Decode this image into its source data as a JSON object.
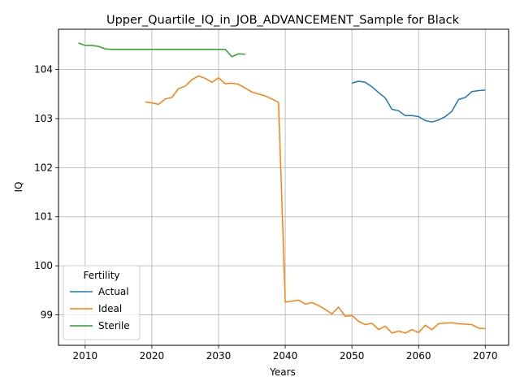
{
  "chart_data": {
    "type": "line",
    "title": "Upper_Quartile_IQ_in_JOB_ADVANCEMENT_Sample for Black",
    "xlabel": "Years",
    "ylabel": "IQ",
    "xlim": [
      2006,
      2073.5
    ],
    "ylim": [
      98.38,
      104.82
    ],
    "xticks": [
      2010,
      2020,
      2030,
      2040,
      2050,
      2060,
      2070
    ],
    "yticks": [
      99,
      100,
      101,
      102,
      103,
      104
    ],
    "grid": true,
    "legend": {
      "title": "Fertility",
      "placement": "lower-left"
    },
    "colors": {
      "Actual": "#1f77b4",
      "Ideal": "#ff7f0e",
      "Sterile": "#2ca02c"
    },
    "series": [
      {
        "name": "Actual",
        "x": [
          2050,
          2051,
          2052,
          2053,
          2054,
          2055,
          2056,
          2057,
          2058,
          2059,
          2060,
          2061,
          2062,
          2063,
          2064,
          2065,
          2066,
          2067,
          2068,
          2069,
          2070
        ],
        "y": [
          103.72,
          103.76,
          103.74,
          103.65,
          103.53,
          103.42,
          103.19,
          103.16,
          103.06,
          103.06,
          103.04,
          102.96,
          102.93,
          102.97,
          103.04,
          103.15,
          103.39,
          103.43,
          103.55,
          103.57,
          103.58
        ]
      },
      {
        "name": "Ideal",
        "x": [
          2019,
          2020,
          2021,
          2022,
          2023,
          2024,
          2025,
          2026,
          2027,
          2028,
          2029,
          2030,
          2031,
          2032,
          2033,
          2034,
          2035,
          2036,
          2037,
          2038,
          2039,
          2040,
          2041,
          2042,
          2043,
          2044,
          2045,
          2046,
          2047,
          2048,
          2049,
          2050,
          2051,
          2052,
          2053,
          2054,
          2055,
          2056,
          2057,
          2058,
          2059,
          2060,
          2061,
          2062,
          2063,
          2064,
          2065,
          2066,
          2067,
          2068,
          2069,
          2070
        ],
        "y": [
          103.34,
          103.32,
          103.29,
          103.4,
          103.43,
          103.61,
          103.66,
          103.79,
          103.87,
          103.82,
          103.74,
          103.83,
          103.71,
          103.72,
          103.7,
          103.62,
          103.54,
          103.5,
          103.46,
          103.4,
          103.33,
          99.26,
          99.28,
          99.3,
          99.22,
          99.25,
          99.19,
          99.11,
          99.02,
          99.16,
          98.97,
          98.99,
          98.87,
          98.8,
          98.83,
          98.7,
          98.77,
          98.63,
          98.67,
          98.63,
          98.7,
          98.64,
          98.79,
          98.7,
          98.82,
          98.83,
          98.84,
          98.82,
          98.81,
          98.8,
          98.73,
          98.72
        ]
      },
      {
        "name": "Sterile",
        "x": [
          2009,
          2010,
          2011,
          2012,
          2013,
          2014,
          2015,
          2016,
          2017,
          2018,
          2019,
          2020,
          2021,
          2022,
          2023,
          2024,
          2025,
          2026,
          2027,
          2028,
          2029,
          2030,
          2031,
          2032,
          2033,
          2034
        ],
        "y": [
          104.54,
          104.49,
          104.49,
          104.47,
          104.42,
          104.41,
          104.41,
          104.41,
          104.41,
          104.41,
          104.41,
          104.41,
          104.41,
          104.41,
          104.41,
          104.41,
          104.41,
          104.41,
          104.41,
          104.41,
          104.41,
          104.41,
          104.41,
          104.26,
          104.32,
          104.31
        ]
      }
    ]
  }
}
